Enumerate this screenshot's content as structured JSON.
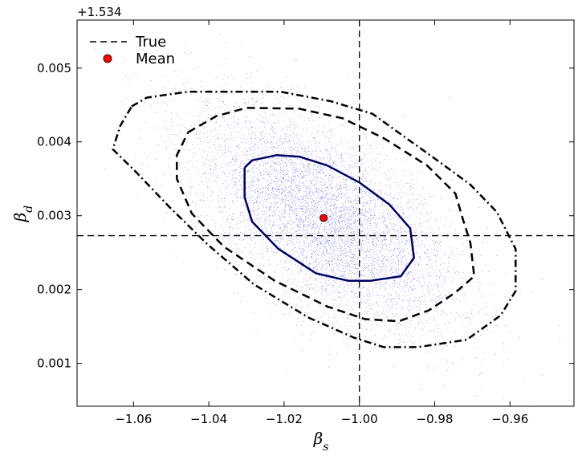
{
  "chart_data": {
    "type": "scatter",
    "title": "",
    "xlabel": "β",
    "xlabel_sub": "s",
    "ylabel": "β",
    "ylabel_sub": "d",
    "y_offset_label": "+1.534",
    "xlim": [
      -1.075,
      -0.943
    ],
    "ylim": [
      0.00042,
      0.00565
    ],
    "x_ticks": [
      -1.06,
      -1.04,
      -1.02,
      -1.0,
      -0.98,
      -0.96
    ],
    "x_tick_labels": [
      "−1.06",
      "−1.04",
      "−1.02",
      "−1.00",
      "−0.98",
      "−0.96"
    ],
    "y_ticks": [
      0.001,
      0.002,
      0.003,
      0.004,
      0.005
    ],
    "y_tick_labels": [
      "0.001",
      "0.002",
      "0.003",
      "0.004",
      "0.005"
    ],
    "grid": false,
    "legend": {
      "placement": "top-left",
      "entries": [
        {
          "label": "True",
          "style": "dashed-line",
          "color": "#000000"
        },
        {
          "label": "Mean",
          "style": "marker",
          "color": "#ff0000"
        }
      ]
    },
    "true_value": {
      "x": -1.0,
      "y": 0.00273
    },
    "mean_value": {
      "x": -1.0095,
      "y": 0.00297
    },
    "samples": {
      "color": "#0000ff",
      "center": {
        "x": -1.0095,
        "y": 0.00297
      },
      "sigma_x": 0.0175,
      "sigma_y": 0.00075,
      "correlation": -0.62,
      "count": 40000
    },
    "contours": [
      {
        "level": "inner",
        "style": "solid",
        "color": "#000066",
        "points": [
          [
            -1.0305,
            0.00365
          ],
          [
            -1.0285,
            0.00375
          ],
          [
            -1.022,
            0.00382
          ],
          [
            -1.016,
            0.0038
          ],
          [
            -1.0085,
            0.00368
          ],
          [
            -1.0,
            0.00345
          ],
          [
            -0.992,
            0.00315
          ],
          [
            -0.9865,
            0.00283
          ],
          [
            -0.9855,
            0.00243
          ],
          [
            -0.989,
            0.00218
          ],
          [
            -0.997,
            0.00212
          ],
          [
            -1.003,
            0.00212
          ],
          [
            -1.0115,
            0.00222
          ],
          [
            -1.0215,
            0.00255
          ],
          [
            -1.0285,
            0.00292
          ],
          [
            -1.0305,
            0.00325
          ],
          [
            -1.0305,
            0.00365
          ]
        ]
      },
      {
        "level": "middle",
        "style": "dashed",
        "color": "#000000",
        "points": [
          [
            -1.0455,
            0.00413
          ],
          [
            -1.038,
            0.00435
          ],
          [
            -1.03,
            0.00446
          ],
          [
            -1.016,
            0.00445
          ],
          [
            -1.0045,
            0.00432
          ],
          [
            -0.9935,
            0.00405
          ],
          [
            -0.982,
            0.00368
          ],
          [
            -0.9745,
            0.0033
          ],
          [
            -0.9725,
            0.00295
          ],
          [
            -0.9705,
            0.00263
          ],
          [
            -0.9695,
            0.00218
          ],
          [
            -0.9745,
            0.00196
          ],
          [
            -0.9815,
            0.00172
          ],
          [
            -0.9895,
            0.00157
          ],
          [
            -0.9985,
            0.0016
          ],
          [
            -1.0085,
            0.00177
          ],
          [
            -1.0225,
            0.00212
          ],
          [
            -1.036,
            0.00258
          ],
          [
            -1.0445,
            0.00303
          ],
          [
            -1.0485,
            0.0035
          ],
          [
            -1.0485,
            0.00382
          ],
          [
            -1.0455,
            0.00413
          ]
        ]
      },
      {
        "level": "outer",
        "style": "dash-dot",
        "color": "#000000",
        "points": [
          [
            -1.0605,
            0.00448
          ],
          [
            -1.0565,
            0.0046
          ],
          [
            -1.0455,
            0.00468
          ],
          [
            -1.034,
            0.00468
          ],
          [
            -1.021,
            0.00468
          ],
          [
            -1.0075,
            0.00455
          ],
          [
            -0.9965,
            0.00438
          ],
          [
            -0.9875,
            0.00405
          ],
          [
            -0.9785,
            0.00372
          ],
          [
            -0.9705,
            0.00342
          ],
          [
            -0.9635,
            0.00305
          ],
          [
            -0.9585,
            0.00255
          ],
          [
            -0.9585,
            0.00198
          ],
          [
            -0.9625,
            0.00165
          ],
          [
            -0.9715,
            0.00132
          ],
          [
            -0.9845,
            0.00122
          ],
          [
            -0.9935,
            0.00122
          ],
          [
            -1.0015,
            0.00135
          ],
          [
            -1.0135,
            0.00162
          ],
          [
            -1.028,
            0.00207
          ],
          [
            -1.0405,
            0.00262
          ],
          [
            -1.0505,
            0.00312
          ],
          [
            -1.0595,
            0.0036
          ],
          [
            -1.0655,
            0.0039
          ],
          [
            -1.0635,
            0.00422
          ],
          [
            -1.0605,
            0.00448
          ]
        ]
      }
    ]
  }
}
